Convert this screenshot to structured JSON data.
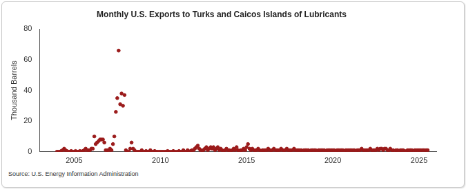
{
  "chart_data": {
    "type": "scatter",
    "title": "Monthly U.S. Exports to Turks and Caicos Islands of Lubricants",
    "y_label": "Thousand Barrels",
    "source": "Source: U.S. Energy Information Administration",
    "color": "#9b1b1b",
    "marker": "circle",
    "grid": false,
    "xlim": [
      2003,
      2026
    ],
    "xticks": [
      2005,
      2010,
      2015,
      2020,
      2025
    ],
    "ylim": [
      0,
      80
    ],
    "yticks": [
      0,
      20,
      40,
      60,
      80
    ],
    "x": [
      2004.0,
      2004.08,
      2004.17,
      2004.25,
      2004.33,
      2004.42,
      2004.5,
      2004.58,
      2004.67,
      2004.75,
      2004.83,
      2004.92,
      2005.0,
      2005.08,
      2005.17,
      2005.25,
      2005.33,
      2005.42,
      2005.5,
      2005.58,
      2005.67,
      2005.75,
      2005.83,
      2005.92,
      2006.0,
      2006.08,
      2006.17,
      2006.25,
      2006.33,
      2006.42,
      2006.5,
      2006.58,
      2006.67,
      2006.75,
      2006.83,
      2006.92,
      2007.0,
      2007.08,
      2007.17,
      2007.25,
      2007.33,
      2007.42,
      2007.5,
      2007.58,
      2007.67,
      2007.75,
      2007.83,
      2007.92,
      2008.0,
      2008.08,
      2008.17,
      2008.25,
      2008.33,
      2008.42,
      2008.5,
      2008.58,
      2008.67,
      2008.75,
      2008.83,
      2008.92,
      2009.0,
      2009.08,
      2009.17,
      2009.25,
      2009.33,
      2009.42,
      2009.5,
      2009.58,
      2009.67,
      2009.75,
      2009.83,
      2009.92,
      2010.0,
      2010.08,
      2010.17,
      2010.25,
      2010.33,
      2010.42,
      2010.5,
      2010.58,
      2010.67,
      2010.75,
      2010.83,
      2010.92,
      2011.0,
      2011.08,
      2011.17,
      2011.25,
      2011.33,
      2011.42,
      2011.5,
      2011.58,
      2011.67,
      2011.75,
      2011.83,
      2011.92,
      2012.0,
      2012.08,
      2012.17,
      2012.25,
      2012.33,
      2012.42,
      2012.5,
      2012.58,
      2012.67,
      2012.75,
      2012.83,
      2012.92,
      2013.0,
      2013.08,
      2013.17,
      2013.25,
      2013.33,
      2013.42,
      2013.5,
      2013.58,
      2013.67,
      2013.75,
      2013.83,
      2013.92,
      2014.0,
      2014.08,
      2014.17,
      2014.25,
      2014.33,
      2014.42,
      2014.5,
      2014.58,
      2014.67,
      2014.75,
      2014.83,
      2014.92,
      2015.0,
      2015.08,
      2015.17,
      2015.25,
      2015.33,
      2015.42,
      2015.5,
      2015.58,
      2015.67,
      2015.75,
      2015.83,
      2015.92,
      2016.0,
      2016.08,
      2016.17,
      2016.25,
      2016.33,
      2016.42,
      2016.5,
      2016.58,
      2016.67,
      2016.75,
      2016.83,
      2016.92,
      2017.0,
      2017.08,
      2017.17,
      2017.25,
      2017.33,
      2017.42,
      2017.5,
      2017.58,
      2017.67,
      2017.75,
      2017.83,
      2017.92,
      2018.0,
      2018.08,
      2018.17,
      2018.25,
      2018.33,
      2018.42,
      2018.5,
      2018.58,
      2018.67,
      2018.75,
      2018.83,
      2018.92,
      2019.0,
      2019.08,
      2019.17,
      2019.25,
      2019.33,
      2019.42,
      2019.5,
      2019.58,
      2019.67,
      2019.75,
      2019.83,
      2019.92,
      2020.0,
      2020.08,
      2020.17,
      2020.25,
      2020.33,
      2020.42,
      2020.5,
      2020.58,
      2020.67,
      2020.75,
      2020.83,
      2020.92,
      2021.0,
      2021.08,
      2021.17,
      2021.25,
      2021.33,
      2021.42,
      2021.5,
      2021.58,
      2021.67,
      2021.75,
      2021.83,
      2021.92,
      2022.0,
      2022.08,
      2022.17,
      2022.25,
      2022.33,
      2022.42,
      2022.5,
      2022.58,
      2022.67,
      2022.75,
      2022.83,
      2022.92,
      2023.0,
      2023.08,
      2023.17,
      2023.25,
      2023.33,
      2023.42,
      2023.5,
      2023.58,
      2023.67,
      2023.75,
      2023.83,
      2023.92,
      2024.0,
      2024.08,
      2024.17,
      2024.25,
      2024.33,
      2024.42,
      2024.5,
      2024.58,
      2024.67,
      2024.75,
      2024.83,
      2024.92,
      2025.0,
      2025.08,
      2025.17,
      2025.25,
      2025.33,
      2025.42,
      2025.5
    ],
    "values": [
      0,
      0,
      0,
      0.5,
      1,
      2,
      1,
      0.5,
      0,
      0,
      0.5,
      0,
      0,
      0.5,
      0,
      0,
      0.5,
      0,
      0.5,
      1,
      2,
      0,
      1,
      1,
      2,
      2,
      10,
      5,
      6,
      7,
      8,
      8,
      8,
      6,
      1,
      1,
      0,
      2,
      1,
      5,
      10,
      26,
      35,
      66,
      31,
      38,
      30,
      37,
      1,
      0,
      0,
      2,
      6,
      2,
      1,
      0,
      0,
      0,
      0,
      1,
      0,
      0,
      0.5,
      0,
      0,
      1,
      0,
      0,
      0.5,
      0,
      0,
      0,
      0,
      0,
      0,
      0,
      0,
      0.5,
      0,
      0,
      0,
      0.5,
      0,
      0,
      0,
      0.5,
      0,
      0,
      1,
      0,
      0,
      1,
      0,
      0.5,
      1,
      1,
      2,
      3,
      4,
      2,
      1,
      1,
      1,
      2,
      3,
      1,
      2,
      3,
      2,
      3,
      1,
      2,
      3,
      1,
      2,
      1,
      0.5,
      1,
      2,
      1,
      1,
      0.5,
      1,
      2,
      1,
      3,
      1,
      0.5,
      1,
      1,
      2,
      1,
      3,
      5,
      2,
      1,
      2,
      1,
      1,
      1,
      2,
      1,
      0.5,
      1,
      1,
      1,
      1,
      2,
      1,
      1,
      1,
      2,
      1,
      1,
      1,
      1,
      2,
      1,
      1,
      1,
      2,
      1,
      1,
      1,
      1,
      2,
      1,
      1,
      1,
      1,
      1,
      0.5,
      1,
      1,
      1,
      1,
      0.5,
      1,
      1,
      1,
      1,
      0.5,
      1,
      1,
      1,
      1,
      1,
      0.5,
      1,
      1,
      1,
      1,
      1,
      1,
      0.5,
      1,
      1,
      1,
      1,
      1,
      0.5,
      1,
      1,
      1,
      1,
      1,
      1,
      1,
      0.5,
      1,
      1,
      1,
      2,
      1,
      1,
      1,
      1,
      1,
      2,
      1,
      1,
      1,
      1,
      2,
      1,
      2,
      2,
      1,
      2,
      2,
      1,
      1,
      2,
      1,
      1,
      0.5,
      1,
      1,
      0.5,
      1,
      1,
      1,
      0.5,
      0,
      1,
      1,
      1,
      1,
      0.5,
      1,
      1,
      1,
      1,
      1,
      1,
      1,
      1,
      1,
      1
    ]
  }
}
